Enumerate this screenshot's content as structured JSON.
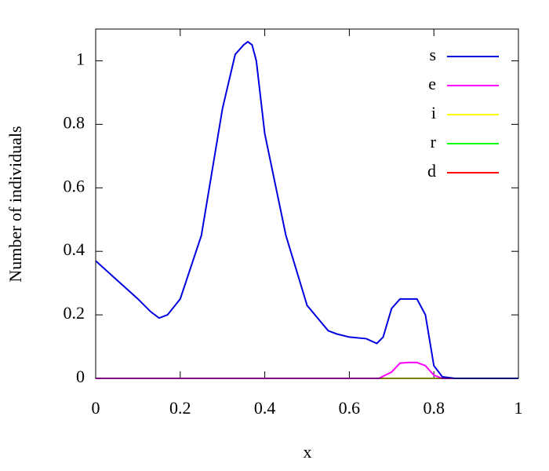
{
  "chart_data": {
    "type": "line",
    "xlabel": "x",
    "ylabel": "Number of individuals",
    "xlim": [
      0,
      1
    ],
    "ylim": [
      0,
      1.1
    ],
    "xticks": [
      0,
      0.2,
      0.4,
      0.6,
      0.8,
      1
    ],
    "yticks": [
      0,
      0.2,
      0.4,
      0.6,
      0.8,
      1
    ],
    "legend": "top right",
    "grid": false,
    "series": [
      {
        "name": "s",
        "color": "#0000e0",
        "x": [
          0,
          0.05,
          0.1,
          0.13,
          0.15,
          0.17,
          0.2,
          0.25,
          0.3,
          0.33,
          0.35,
          0.36,
          0.37,
          0.38,
          0.4,
          0.45,
          0.5,
          0.55,
          0.57,
          0.6,
          0.64,
          0.665,
          0.68,
          0.7,
          0.72,
          0.74,
          0.76,
          0.78,
          0.8,
          0.82,
          0.85,
          1
        ],
        "values": [
          0.37,
          0.31,
          0.25,
          0.21,
          0.19,
          0.2,
          0.25,
          0.45,
          0.85,
          1.02,
          1.05,
          1.06,
          1.05,
          1.0,
          0.77,
          0.45,
          0.23,
          0.15,
          0.14,
          0.13,
          0.125,
          0.11,
          0.13,
          0.22,
          0.25,
          0.25,
          0.25,
          0.2,
          0.04,
          0.005,
          0,
          0
        ]
      },
      {
        "name": "e",
        "color": "#ff00ff",
        "x": [
          0,
          0.67,
          0.7,
          0.72,
          0.74,
          0.76,
          0.78,
          0.8,
          0.82,
          1
        ],
        "values": [
          0,
          0,
          0.02,
          0.048,
          0.05,
          0.05,
          0.04,
          0.01,
          0,
          0
        ]
      },
      {
        "name": "i",
        "color": "#ffff00",
        "x": [
          0,
          1
        ],
        "values": [
          0,
          0
        ]
      },
      {
        "name": "r",
        "color": "#00ff00",
        "x": [
          0,
          1
        ],
        "values": [
          0,
          0
        ]
      },
      {
        "name": "d",
        "color": "#ff0000",
        "x": [
          0,
          1
        ],
        "values": [
          0,
          0
        ]
      }
    ]
  }
}
